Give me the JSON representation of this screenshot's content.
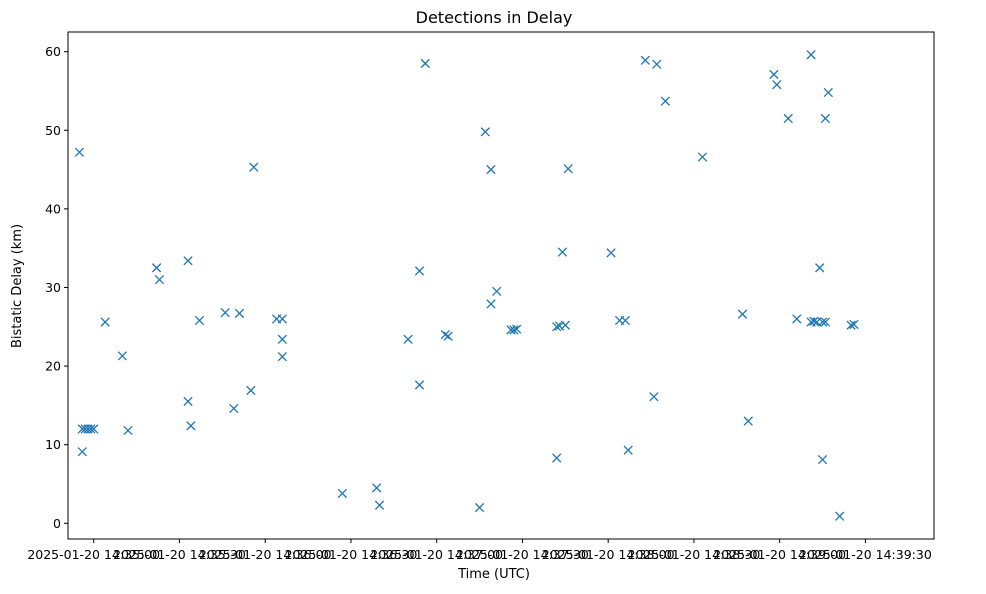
{
  "chart_data": {
    "type": "scatter",
    "title": "Detections in Delay",
    "xlabel": "Time (UTC)",
    "ylabel": "Bistatic Delay (km)",
    "x_ticks": [
      "2025-01-20 14:35:00",
      "2025-01-20 14:35:30",
      "2025-01-20 14:36:00",
      "2025-01-20 14:36:30",
      "2025-01-20 14:37:00",
      "2025-01-20 14:37:30",
      "2025-01-20 14:38:00",
      "2025-01-20 14:38:30",
      "2025-01-20 14:39:00",
      "2025-01-20 14:39:30"
    ],
    "y_ticks": [
      0,
      10,
      20,
      30,
      40,
      50,
      60
    ],
    "ylim": [
      -2,
      62.5
    ],
    "xlim": [
      "2025-01-20 14:34:51",
      "2025-01-20 14:39:54"
    ],
    "grid": false,
    "marker": "x",
    "color": "#1f77b4",
    "series": [
      {
        "points": [
          [
            "2025-01-20 14:34:55",
            47.2
          ],
          [
            "2025-01-20 14:34:56",
            9.1
          ],
          [
            "2025-01-20 14:34:56",
            12.0
          ],
          [
            "2025-01-20 14:34:57",
            12.0
          ],
          [
            "2025-01-20 14:34:58",
            12.0
          ],
          [
            "2025-01-20 14:34:59",
            12.0
          ],
          [
            "2025-01-20 14:35:00",
            12.0
          ],
          [
            "2025-01-20 14:35:04",
            25.6
          ],
          [
            "2025-01-20 14:35:10",
            21.3
          ],
          [
            "2025-01-20 14:35:12",
            11.8
          ],
          [
            "2025-01-20 14:35:22",
            32.5
          ],
          [
            "2025-01-20 14:35:23",
            31.0
          ],
          [
            "2025-01-20 14:35:33",
            33.4
          ],
          [
            "2025-01-20 14:35:33",
            15.5
          ],
          [
            "2025-01-20 14:35:34",
            12.4
          ],
          [
            "2025-01-20 14:35:37",
            25.8
          ],
          [
            "2025-01-20 14:35:46",
            26.8
          ],
          [
            "2025-01-20 14:35:49",
            14.6
          ],
          [
            "2025-01-20 14:35:51",
            26.7
          ],
          [
            "2025-01-20 14:35:55",
            16.9
          ],
          [
            "2025-01-20 14:35:56",
            45.3
          ],
          [
            "2025-01-20 14:36:04",
            26.0
          ],
          [
            "2025-01-20 14:36:06",
            23.4
          ],
          [
            "2025-01-20 14:36:06",
            21.2
          ],
          [
            "2025-01-20 14:36:06",
            26.0
          ],
          [
            "2025-01-20 14:36:27",
            3.8
          ],
          [
            "2025-01-20 14:36:39",
            4.5
          ],
          [
            "2025-01-20 14:36:40",
            2.3
          ],
          [
            "2025-01-20 14:36:50",
            23.4
          ],
          [
            "2025-01-20 14:36:54",
            32.1
          ],
          [
            "2025-01-20 14:36:54",
            17.6
          ],
          [
            "2025-01-20 14:36:56",
            58.5
          ],
          [
            "2025-01-20 14:37:03",
            24.0
          ],
          [
            "2025-01-20 14:37:04",
            23.8
          ],
          [
            "2025-01-20 14:37:15",
            2.0
          ],
          [
            "2025-01-20 14:37:17",
            49.8
          ],
          [
            "2025-01-20 14:37:19",
            45.0
          ],
          [
            "2025-01-20 14:37:19",
            27.9
          ],
          [
            "2025-01-20 14:37:21",
            29.5
          ],
          [
            "2025-01-20 14:37:26",
            24.6
          ],
          [
            "2025-01-20 14:37:27",
            24.6
          ],
          [
            "2025-01-20 14:37:28",
            24.7
          ],
          [
            "2025-01-20 14:37:42",
            25.0
          ],
          [
            "2025-01-20 14:37:42",
            8.3
          ],
          [
            "2025-01-20 14:37:43",
            25.1
          ],
          [
            "2025-01-20 14:37:44",
            34.5
          ],
          [
            "2025-01-20 14:37:45",
            25.2
          ],
          [
            "2025-01-20 14:37:46",
            45.1
          ],
          [
            "2025-01-20 14:38:01",
            34.4
          ],
          [
            "2025-01-20 14:38:04",
            25.8
          ],
          [
            "2025-01-20 14:38:06",
            25.8
          ],
          [
            "2025-01-20 14:38:07",
            9.3
          ],
          [
            "2025-01-20 14:38:13",
            58.9
          ],
          [
            "2025-01-20 14:38:16",
            16.1
          ],
          [
            "2025-01-20 14:38:17",
            58.4
          ],
          [
            "2025-01-20 14:38:20",
            53.7
          ],
          [
            "2025-01-20 14:38:33",
            46.6
          ],
          [
            "2025-01-20 14:38:47",
            26.6
          ],
          [
            "2025-01-20 14:38:49",
            13.0
          ],
          [
            "2025-01-20 14:38:58",
            57.1
          ],
          [
            "2025-01-20 14:38:59",
            55.8
          ],
          [
            "2025-01-20 14:39:03",
            51.5
          ],
          [
            "2025-01-20 14:39:06",
            26.0
          ],
          [
            "2025-01-20 14:39:11",
            25.6
          ],
          [
            "2025-01-20 14:39:11",
            59.6
          ],
          [
            "2025-01-20 14:39:12",
            25.7
          ],
          [
            "2025-01-20 14:39:13",
            25.6
          ],
          [
            "2025-01-20 14:39:14",
            32.5
          ],
          [
            "2025-01-20 14:39:15",
            25.6
          ],
          [
            "2025-01-20 14:39:15",
            8.1
          ],
          [
            "2025-01-20 14:39:16",
            25.6
          ],
          [
            "2025-01-20 14:39:16",
            51.5
          ],
          [
            "2025-01-20 14:39:17",
            54.8
          ],
          [
            "2025-01-20 14:39:21",
            0.9
          ],
          [
            "2025-01-20 14:39:25",
            25.2
          ],
          [
            "2025-01-20 14:39:26",
            25.3
          ]
        ]
      }
    ]
  }
}
